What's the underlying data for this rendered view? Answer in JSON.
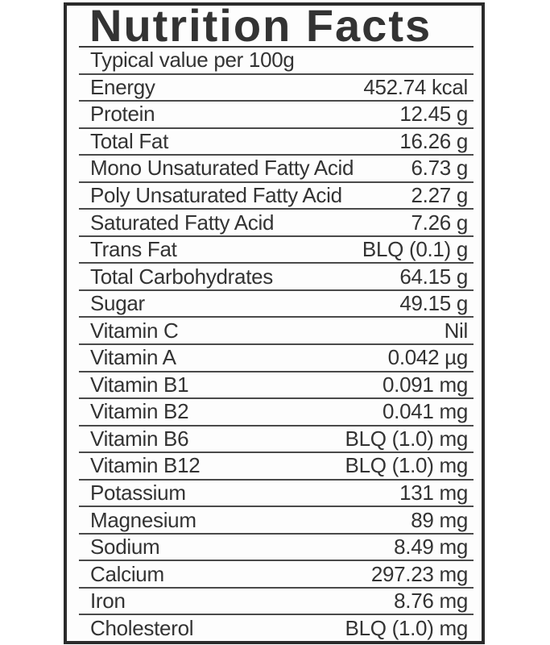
{
  "label": {
    "title": "Nutrition Facts",
    "header": "Typical value per 100g",
    "rows": [
      {
        "name": "Energy",
        "value": "452.74 kcal"
      },
      {
        "name": "Protein",
        "value": "12.45 g"
      },
      {
        "name": "Total Fat",
        "value": "16.26 g"
      },
      {
        "name": "Mono Unsaturated Fatty Acid",
        "value": "6.73 g"
      },
      {
        "name": "Poly Unsaturated Fatty Acid",
        "value": "2.27 g"
      },
      {
        "name": "Saturated Fatty Acid",
        "value": "7.26 g"
      },
      {
        "name": "Trans Fat",
        "value": "BLQ (0.1) g"
      },
      {
        "name": "Total Carbohydrates",
        "value": "64.15 g"
      },
      {
        "name": "Sugar",
        "value": "49.15 g"
      },
      {
        "name": "Vitamin C",
        "value": "Nil"
      },
      {
        "name": "Vitamin A",
        "value": "0.042 µg"
      },
      {
        "name": "Vitamin B1",
        "value": "0.091 mg"
      },
      {
        "name": "Vitamin B2",
        "value": "0.041 mg"
      },
      {
        "name": "Vitamin B6",
        "value": "BLQ (1.0) mg"
      },
      {
        "name": "Vitamin B12",
        "value": "BLQ (1.0) mg"
      },
      {
        "name": "Potassium",
        "value": "131 mg"
      },
      {
        "name": "Magnesium",
        "value": "89 mg"
      },
      {
        "name": "Sodium",
        "value": "8.49 mg"
      },
      {
        "name": "Calcium",
        "value": "297.23 mg"
      },
      {
        "name": "Iron",
        "value": "8.76 mg"
      },
      {
        "name": "Cholesterol",
        "value": "BLQ (1.0) mg"
      }
    ]
  },
  "colors": {
    "ink": "#333333",
    "rule": "#4a4a4a",
    "border": "#2b2b2b",
    "panel": "#fdfdfd",
    "page_background": "#ffffff"
  }
}
